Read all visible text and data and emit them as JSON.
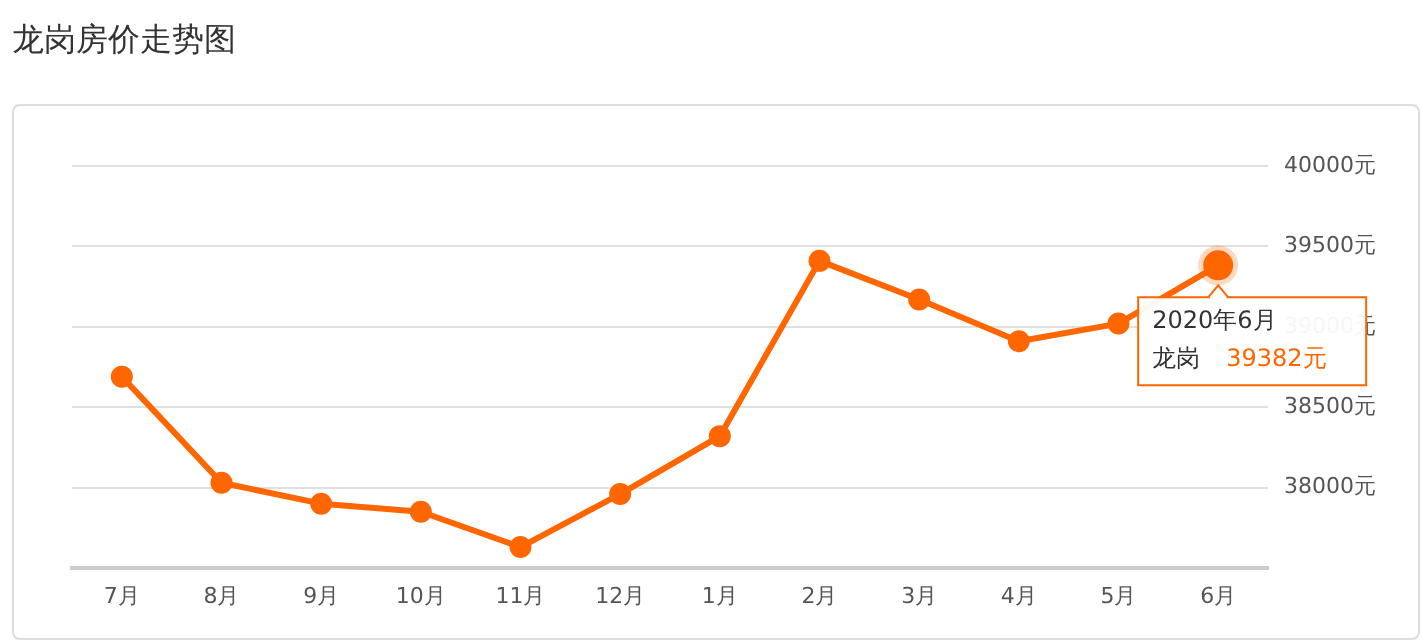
{
  "chart_data": {
    "type": "line",
    "title": "龙岗房价走势图",
    "categories": [
      "7月",
      "8月",
      "9月",
      "10月",
      "11月",
      "12月",
      "1月",
      "2月",
      "3月",
      "4月",
      "5月",
      "6月"
    ],
    "series": [
      {
        "name": "龙岗",
        "color": "#ff6600",
        "values": [
          38690,
          38030,
          37900,
          37850,
          37630,
          37960,
          38320,
          39410,
          39170,
          38910,
          39020,
          39382
        ],
        "value_labels": [
          null,
          null,
          null,
          null,
          null,
          null,
          null,
          null,
          null,
          null,
          null,
          "39382元"
        ]
      }
    ],
    "ylim": [
      37500,
      40000
    ],
    "yticks": [
      {
        "value": 38000,
        "label": "38000元"
      },
      {
        "value": 38500,
        "label": "38500元"
      },
      {
        "value": 39000,
        "label": "39000元"
      },
      {
        "value": 39500,
        "label": "39500元"
      },
      {
        "value": 40000,
        "label": "40000元"
      }
    ],
    "annotations": [
      {
        "text": "2020年6月",
        "x": "6月",
        "y": 39382
      }
    ],
    "grid": "y",
    "legend": false,
    "marker": "circle",
    "line_style": "solid"
  }
}
